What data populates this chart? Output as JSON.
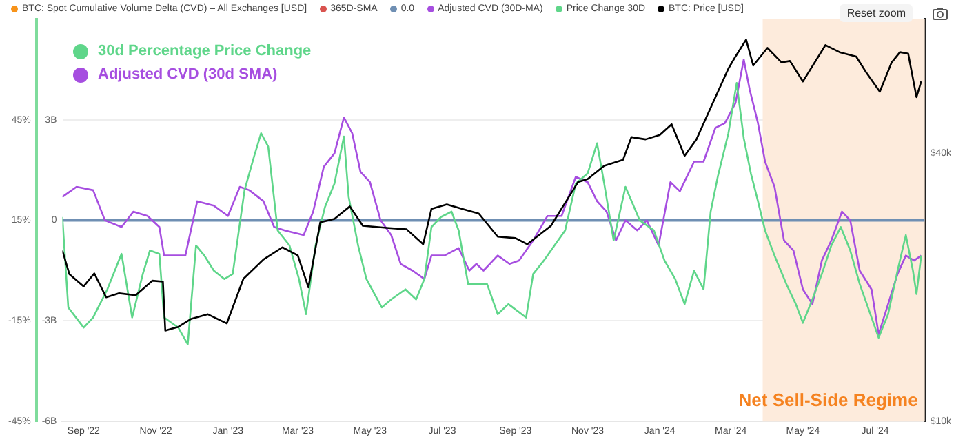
{
  "chart_data": {
    "type": "line",
    "annotations": [
      "30d Percentage Price Change",
      "Adjusted CVD (30d SMA)",
      "Reset zoom"
    ],
    "xlim": [
      "2022-08-14",
      "2024-08-12"
    ],
    "xticks": [
      {
        "value": "2022-09-01",
        "label": "Sep '22"
      },
      {
        "value": "2022-11-01",
        "label": "Nov '22"
      },
      {
        "value": "2023-01-01",
        "label": "Jan '23"
      },
      {
        "value": "2023-03-01",
        "label": "Mar '23"
      },
      {
        "value": "2023-05-01",
        "label": "May '23"
      },
      {
        "value": "2023-07-01",
        "label": "Jul '23"
      },
      {
        "value": "2023-09-01",
        "label": "Sep '23"
      },
      {
        "value": "2023-11-01",
        "label": "Nov '23"
      },
      {
        "value": "2024-01-01",
        "label": "Jan '24"
      },
      {
        "value": "2024-03-01",
        "label": "Mar '24"
      },
      {
        "value": "2024-05-01",
        "label": "May '24"
      },
      {
        "value": "2024-07-01",
        "label": "Jul '24"
      }
    ],
    "ylim": [
      -45,
      75
    ],
    "yticks": [
      {
        "value": -45,
        "label": "-45%"
      },
      {
        "value": -15,
        "label": "-15%"
      },
      {
        "value": 15,
        "label": "15%"
      },
      {
        "value": 45,
        "label": "45%"
      }
    ],
    "y2lim": [
      -6,
      6
    ],
    "y2ticks": [
      {
        "value": -6,
        "label": "-6B"
      },
      {
        "value": -3,
        "label": "-3B"
      },
      0,
      {
        "value": 3,
        "label": "3B"
      }
    ],
    "y3lim": [
      10000,
      80000
    ],
    "y3ticks": [
      {
        "value": 10000,
        "label": "$10k"
      },
      {
        "value": 40000,
        "label": "$40k"
      }
    ],
    "log": "y3",
    "grid": "y",
    "legend": "top left",
    "bands": [
      {
        "axis": "x",
        "from": "2024-03-28",
        "to": "2024-08-12",
        "label": "Net Sell-Side Regime",
        "color": "#fdebdc"
      }
    ],
    "series": [
      {
        "name": "BTC: Spot Cumulative Volume Delta (CVD) – All Exchanges [USD]",
        "color": "#f7931a",
        "axis": "y2"
      },
      {
        "name": "365D-SMA",
        "color": "#d9534f",
        "axis": "y2"
      },
      {
        "name": "0.0",
        "color": "#6f8fb3",
        "axis": "y2",
        "x": [
          "2022-08-14",
          "2024-08-12"
        ],
        "values": [
          0,
          0
        ]
      },
      {
        "name": "Adjusted CVD (30D-MA)",
        "color": "#a64ee0",
        "axis": "y2",
        "x": [
          "2022-08-14",
          "2022-08-26",
          "2022-09-09",
          "2022-09-19",
          "2022-10-03",
          "2022-10-13",
          "2022-10-25",
          "2022-11-04",
          "2022-11-08",
          "2022-11-26",
          "2022-12-06",
          "2022-12-20",
          "2023-01-01",
          "2023-01-11",
          "2023-01-19",
          "2023-01-31",
          "2023-02-09",
          "2023-02-18",
          "2023-03-06",
          "2023-03-14",
          "2023-03-23",
          "2023-04-01",
          "2023-04-09",
          "2023-04-16",
          "2023-04-23",
          "2023-05-01",
          "2023-05-10",
          "2023-05-19",
          "2023-05-27",
          "2023-06-06",
          "2023-06-16",
          "2023-06-22",
          "2023-07-03",
          "2023-07-15",
          "2023-07-24",
          "2023-07-30",
          "2023-08-05",
          "2023-08-17",
          "2023-08-27",
          "2023-09-04",
          "2023-09-16",
          "2023-09-28",
          "2023-10-10",
          "2023-10-22",
          "2023-11-01",
          "2023-11-09",
          "2023-11-17",
          "2023-11-25",
          "2023-12-03",
          "2023-12-13",
          "2023-12-21",
          "2023-12-31",
          "2024-01-10",
          "2024-01-18",
          "2024-01-30",
          "2024-02-07",
          "2024-02-17",
          "2024-02-25",
          "2024-03-05",
          "2024-03-12",
          "2024-03-17",
          "2024-03-24",
          "2024-03-30",
          "2024-04-07",
          "2024-04-15",
          "2024-04-23",
          "2024-05-01",
          "2024-05-09",
          "2024-05-17",
          "2024-05-25",
          "2024-06-03",
          "2024-06-10",
          "2024-06-18",
          "2024-06-28",
          "2024-07-04",
          "2024-07-12",
          "2024-07-20",
          "2024-07-27",
          "2024-08-03",
          "2024-08-09"
        ],
        "values": [
          0.7,
          1.0,
          0.9,
          0,
          -0.2,
          0.26,
          0.13,
          -0.2,
          -1.05,
          -1.05,
          0.57,
          0.44,
          0.13,
          1.0,
          0.9,
          0.57,
          -0.2,
          -0.3,
          -0.44,
          0.26,
          1.6,
          2.0,
          3.07,
          2.6,
          1.45,
          1.14,
          0,
          -0.44,
          -1.3,
          -1.5,
          -1.75,
          -1.05,
          -1.05,
          -0.83,
          -1.5,
          -1.3,
          -1.5,
          -1.05,
          -1.3,
          -1.2,
          -0.6,
          0.13,
          0.13,
          1.3,
          1.14,
          0.57,
          0.26,
          -0.6,
          0,
          -0.3,
          0,
          -0.75,
          1.14,
          0.87,
          1.75,
          1.75,
          2.76,
          2.9,
          3.5,
          4.8,
          3.9,
          2.9,
          1.75,
          1.0,
          -0.6,
          -0.9,
          -2.06,
          -2.5,
          -1.2,
          -0.6,
          0.26,
          0,
          -1.5,
          -2.06,
          -3.4,
          -2.5,
          -1.6,
          -1.05,
          -1.2,
          -1.05
        ]
      },
      {
        "name": "Price Change 30D",
        "color": "#5fd68a",
        "axis": "y",
        "x": [
          "2022-08-14",
          "2022-08-19",
          "2022-09-01",
          "2022-09-09",
          "2022-09-21",
          "2022-10-03",
          "2022-10-12",
          "2022-10-21",
          "2022-10-27",
          "2022-11-04",
          "2022-11-08",
          "2022-11-20",
          "2022-11-28",
          "2022-12-05",
          "2022-12-12",
          "2022-12-20",
          "2022-12-29",
          "2023-01-05",
          "2023-01-15",
          "2023-01-23",
          "2023-01-29",
          "2023-02-04",
          "2023-02-12",
          "2023-02-22",
          "2023-03-02",
          "2023-03-08",
          "2023-03-16",
          "2023-03-24",
          "2023-04-01",
          "2023-04-09",
          "2023-04-13",
          "2023-04-21",
          "2023-04-28",
          "2023-05-11",
          "2023-05-19",
          "2023-05-31",
          "2023-06-09",
          "2023-06-16",
          "2023-06-22",
          "2023-06-30",
          "2023-07-09",
          "2023-07-15",
          "2023-07-23",
          "2023-07-30",
          "2023-08-08",
          "2023-08-17",
          "2023-08-26",
          "2023-09-10",
          "2023-09-16",
          "2023-09-25",
          "2023-10-04",
          "2023-10-13",
          "2023-10-22",
          "2023-11-01",
          "2023-11-09",
          "2023-11-15",
          "2023-11-23",
          "2023-12-03",
          "2023-12-15",
          "2023-12-27",
          "2024-01-05",
          "2024-01-14",
          "2024-01-22",
          "2024-01-30",
          "2024-02-07",
          "2024-02-13",
          "2024-02-19",
          "2024-02-28",
          "2024-03-06",
          "2024-03-12",
          "2024-03-18",
          "2024-03-24",
          "2024-03-30",
          "2024-04-07",
          "2024-04-17",
          "2024-04-25",
          "2024-05-01",
          "2024-05-09",
          "2024-05-17",
          "2024-05-25",
          "2024-06-02",
          "2024-06-10",
          "2024-06-18",
          "2024-06-27",
          "2024-07-04",
          "2024-07-12",
          "2024-07-20",
          "2024-07-27",
          "2024-08-02",
          "2024-08-05",
          "2024-08-09"
        ],
        "values": [
          16,
          -11,
          -17,
          -14,
          -5.6,
          5,
          -14,
          -1,
          6,
          5,
          -14,
          -17,
          -22,
          7.5,
          4.5,
          0,
          -2.5,
          -1,
          24,
          34,
          41,
          37,
          12,
          7.5,
          -2.5,
          -13,
          7.5,
          19,
          26,
          40,
          22,
          7.5,
          -2.5,
          -11,
          -8.6,
          -5.6,
          -8.6,
          -2.5,
          13,
          16,
          17.6,
          12,
          -4,
          -4,
          -4,
          -13,
          -10,
          -14,
          -1,
          3,
          7.5,
          12,
          26,
          29,
          38,
          26,
          9,
          25,
          15,
          12,
          3,
          -2.5,
          -10,
          0,
          -5.6,
          17.6,
          28,
          41,
          56,
          39.5,
          29,
          20.7,
          12,
          4.5,
          -4,
          -10,
          -15.6,
          -8.6,
          -1,
          7.5,
          13,
          6,
          -4,
          -13,
          -20,
          -13,
          0,
          10.6,
          0,
          -7,
          4.5
        ]
      },
      {
        "name": "BTC: Price [USD]",
        "color": "#000000",
        "axis": "y3",
        "x": [
          "2022-08-14",
          "2022-08-20",
          "2022-09-01",
          "2022-09-10",
          "2022-09-20",
          "2022-10-01",
          "2022-10-15",
          "2022-10-29",
          "2022-11-07",
          "2022-11-09",
          "2022-11-20",
          "2022-12-01",
          "2022-12-15",
          "2022-12-31",
          "2023-01-14",
          "2023-01-31",
          "2023-02-16",
          "2023-03-01",
          "2023-03-10",
          "2023-03-20",
          "2023-04-01",
          "2023-04-14",
          "2023-04-25",
          "2023-05-15",
          "2023-06-01",
          "2023-06-15",
          "2023-06-22",
          "2023-07-05",
          "2023-07-20",
          "2023-08-01",
          "2023-08-17",
          "2023-09-01",
          "2023-09-11",
          "2023-10-01",
          "2023-10-24",
          "2023-11-01",
          "2023-11-15",
          "2023-12-01",
          "2023-12-08",
          "2023-12-20",
          "2024-01-01",
          "2024-01-11",
          "2024-01-22",
          "2024-02-01",
          "2024-02-15",
          "2024-02-28",
          "2024-03-05",
          "2024-03-14",
          "2024-03-20",
          "2024-04-01",
          "2024-04-13",
          "2024-04-20",
          "2024-05-01",
          "2024-05-20",
          "2024-06-01",
          "2024-06-15",
          "2024-06-24",
          "2024-07-05",
          "2024-07-15",
          "2024-07-22",
          "2024-07-29",
          "2024-08-05",
          "2024-08-09"
        ],
        "values": [
          24200,
          21400,
          20100,
          21500,
          19000,
          19400,
          19200,
          20700,
          20600,
          16000,
          16300,
          17000,
          17400,
          16600,
          20900,
          23100,
          24600,
          23600,
          20000,
          28000,
          28500,
          30400,
          27500,
          27200,
          27000,
          25000,
          30000,
          30700,
          29900,
          29300,
          26000,
          25800,
          25000,
          27500,
          34500,
          35000,
          37500,
          38700,
          43500,
          43000,
          44000,
          46500,
          39500,
          43000,
          52000,
          62000,
          66000,
          72000,
          63000,
          69000,
          64000,
          64500,
          58000,
          70000,
          67500,
          66000,
          60500,
          55000,
          64000,
          67500,
          67000,
          53500,
          58000
        ]
      }
    ]
  }
}
